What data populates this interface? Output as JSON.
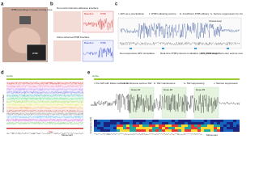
{
  "panel_a": {
    "label": "a",
    "caption": "iPSB recordings in freely moving mice",
    "tag": "iPSB"
  },
  "panel_b": {
    "label": "b",
    "top": "Non-conformal wire-adhesive interface",
    "bottom": "Ultra-conformal iPSB interface",
    "baseline": "Baseline",
    "ipsb": "iPSB"
  },
  "panel_c": {
    "label": "c",
    "steps": [
      "i. HPC as a precipitation",
      "ii. iPSB indicating seizure",
      "iii. Insufficient iPSB efficacy",
      "iv. Seizure suppression by closed-loop iPSB"
    ],
    "closed_loop": "Closed-loop",
    "notes": [
      "Non-responsive HPC stimulation",
      "Real-time iPSB protocol modulation (ACT_sw tuning)",
      "Ictal iPSB intensified enter seizure recovery"
    ]
  },
  "panel_d": {
    "label": "d",
    "hpna": "HpNa",
    "y_label": "Channel number",
    "stim": "Stim",
    "movement": "Movement"
  },
  "panel_e": {
    "label": "e",
    "hpna": "HpNa",
    "phases": [
      "i. Pre-SW with Delta oscillations",
      "ii. Continuous seizure SW",
      "iii. SW maintenance",
      "iv. SW suppressing",
      "v. Seizure suppressed"
    ],
    "doses": [
      "Dose #1",
      "Dose #2",
      "Dose #3"
    ],
    "channel": "Ch 8",
    "y_label": "Frequency (Hz)",
    "movement": "Movement"
  }
}
